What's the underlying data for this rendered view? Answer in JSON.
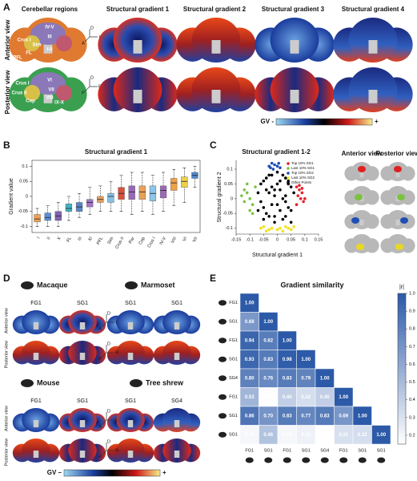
{
  "figure": {
    "panel_labels": [
      "A",
      "B",
      "C",
      "D",
      "E"
    ],
    "panel_a": {
      "titles": [
        "Cerebellar regions",
        "Structural gradient 1",
        "Structural gradient 2",
        "Structural gradient 3",
        "Structural gradient 4"
      ],
      "views": [
        "Anterior view",
        "Posterior view"
      ],
      "anterior_regions": [
        "IV-V",
        "III",
        "Sim",
        "Crus I",
        "I-II",
        "FL",
        "PFL"
      ],
      "posterior_regions": [
        "VI",
        "VII",
        "VIII",
        "Crus I",
        "Crus II",
        "Cop",
        "IX-X"
      ],
      "axes_anterior": [
        "D",
        "L",
        "A"
      ],
      "axes_posterior": [
        "D",
        "R",
        "P"
      ],
      "colorbar": [
        "GV -",
        "+"
      ]
    },
    "panel_c_views": [
      "Anterior view",
      "Posterior view"
    ],
    "panel_d": {
      "species": [
        "Macaque",
        "Marmoset",
        "Mouse",
        "Tree shrew"
      ],
      "gradients": [
        [
          "FG1",
          "SG1"
        ],
        [
          "SG1",
          "SG1"
        ],
        [
          "FG1",
          "SG1"
        ],
        [
          "SG1",
          "SG4"
        ]
      ],
      "views": [
        "Anterior view",
        "Posterior view",
        "Anterior view",
        "Posterior view"
      ],
      "axes_anterior": [
        "D",
        "L",
        "A"
      ],
      "axes_posterior": [
        "D",
        "R",
        "P"
      ],
      "colorbar": [
        "GV –",
        "+"
      ]
    }
  },
  "chart_data": [
    {
      "type": "box",
      "title": "Structural gradient 1",
      "ylabel": "Gradient value",
      "categories": [
        "I",
        "II",
        "X",
        "FL",
        "III",
        "XI",
        "PFL",
        "Sim",
        "Crus II",
        "Par",
        "Cop",
        "Crus I",
        "IV-V",
        "VIII",
        "VI",
        "VII"
      ],
      "colors": [
        "#f0a050",
        "#5a8fd6",
        "#8262b4",
        "#3fb3c4",
        "#5a86c8",
        "#a274c4",
        "#e6a25e",
        "#86c0e6",
        "#d9503c",
        "#9a68b8",
        "#eaa258",
        "#8cc6e8",
        "#9b6ab6",
        "#eea14a",
        "#ecd24a",
        "#4e8ad2"
      ],
      "stats": [
        {
          "low": -0.1,
          "q1": -0.085,
          "median": -0.075,
          "q3": -0.06,
          "high": -0.04
        },
        {
          "low": -0.1,
          "q1": -0.08,
          "median": -0.07,
          "q3": -0.055,
          "high": -0.03
        },
        {
          "low": -0.1,
          "q1": -0.08,
          "median": -0.065,
          "q3": -0.05,
          "high": -0.02
        },
        {
          "low": -0.08,
          "q1": -0.05,
          "median": -0.04,
          "q3": -0.025,
          "high": 0
        },
        {
          "low": -0.07,
          "q1": -0.05,
          "median": -0.035,
          "q3": -0.02,
          "high": 0.01
        },
        {
          "low": -0.06,
          "q1": -0.035,
          "median": -0.02,
          "q3": -0.01,
          "high": 0.03
        },
        {
          "low": -0.05,
          "q1": -0.02,
          "median": -0.01,
          "q3": 0,
          "high": 0.035
        },
        {
          "low": -0.05,
          "q1": -0.02,
          "median": 0,
          "q3": 0.01,
          "high": 0.05
        },
        {
          "low": -0.05,
          "q1": -0.01,
          "median": 0.01,
          "q3": 0.03,
          "high": 0.07
        },
        {
          "low": -0.06,
          "q1": -0.01,
          "median": 0.015,
          "q3": 0.035,
          "high": 0.08
        },
        {
          "low": -0.05,
          "q1": -0.01,
          "median": 0.015,
          "q3": 0.035,
          "high": 0.08
        },
        {
          "low": -0.06,
          "q1": -0.015,
          "median": 0.01,
          "q3": 0.035,
          "high": 0.07
        },
        {
          "low": -0.05,
          "q1": -0.005,
          "median": 0.02,
          "q3": 0.035,
          "high": 0.08
        },
        {
          "low": -0.03,
          "q1": 0.02,
          "median": 0.045,
          "q3": 0.06,
          "high": 0.09
        },
        {
          "low": -0.02,
          "q1": 0.03,
          "median": 0.05,
          "q3": 0.065,
          "high": 0.095
        },
        {
          "low": 0.03,
          "q1": 0.06,
          "median": 0.07,
          "q3": 0.08,
          "high": 0.1
        }
      ],
      "ylim": [
        -0.12,
        0.12
      ],
      "yticks": [
        -0.1,
        -0.05,
        0,
        0.05,
        0.1
      ]
    },
    {
      "type": "scatter",
      "title": "Structural gradient 1-2",
      "xlabel": "Structural gradient 1",
      "ylabel": "Structural gradient 2",
      "xlim": [
        -0.15,
        0.15
      ],
      "xticks": [
        -0.15,
        -0.1,
        -0.05,
        0,
        0.05,
        0.1,
        0.15
      ],
      "ylim": [
        -0.12,
        0.13
      ],
      "yticks": [
        -0.1,
        -0.05,
        0,
        0.05,
        0.1
      ],
      "series": [
        {
          "name": "Top 10% SG1",
          "color": "#e8202a",
          "x": [
            0.07,
            0.08,
            0.09,
            0.075,
            0.085,
            0.095,
            0.07,
            0.08,
            0.09,
            0.1
          ],
          "values": [
            0.04,
            0.03,
            0.02,
            0.01,
            0,
            -0.01,
            -0.02,
            0.045,
            0.035,
            0
          ]
        },
        {
          "name": "Last 10% SG1",
          "color": "#7cc242",
          "x": [
            -0.12,
            -0.11,
            -0.1,
            -0.09,
            -0.13,
            -0.1,
            -0.08,
            -0.11,
            -0.09,
            -0.12
          ],
          "values": [
            0.03,
            0.05,
            0,
            -0.02,
            0.01,
            -0.04,
            0.04,
            0.02,
            -0.05,
            -0.01
          ]
        },
        {
          "name": "Top 10% SG2",
          "color": "#1f4fb4",
          "x": [
            -0.03,
            -0.02,
            -0.01,
            0,
            0.01,
            -0.015,
            0.005,
            -0.025
          ],
          "values": [
            0.11,
            0.12,
            0.115,
            0.11,
            0.105,
            0.1,
            0.12,
            0.105
          ]
        },
        {
          "name": "Last 10% SG2",
          "color": "#f2e21c",
          "x": [
            -0.06,
            -0.04,
            -0.02,
            0,
            0.02,
            0.04,
            0.06,
            -0.05,
            0.01,
            0.05,
            -0.03,
            0.03
          ],
          "values": [
            -0.1,
            -0.11,
            -0.1,
            -0.105,
            -0.11,
            -0.1,
            -0.095,
            -0.095,
            -0.1,
            -0.105,
            -0.105,
            -0.095
          ]
        },
        {
          "name": "Other Points",
          "color": "#000000",
          "x": [
            -0.07,
            -0.06,
            -0.05,
            -0.04,
            -0.03,
            -0.02,
            -0.01,
            0,
            0.01,
            0.02,
            0.03,
            0.04,
            0.05,
            0.06,
            -0.06,
            -0.04,
            -0.02,
            0,
            0.02,
            0.04,
            -0.05,
            -0.03,
            -0.01,
            0.01,
            0.03,
            0.05,
            -0.07,
            -0.05,
            -0.03,
            -0.01,
            0.01,
            0.03,
            0.05,
            -0.04,
            -0.02,
            0,
            0.02,
            0.04,
            -0.01,
            0.03
          ],
          "values": [
            0.02,
            0.05,
            -0.03,
            0.07,
            -0.06,
            0.08,
            0.03,
            -0.02,
            0.06,
            -0.07,
            0.01,
            0.05,
            -0.04,
            0.02,
            -0.01,
            -0.05,
            0.04,
            0.09,
            0,
            -0.03,
            0.06,
            0.02,
            -0.06,
            -0.04,
            0.07,
            0.04,
            -0.04,
            -0.07,
            0.08,
            0.01,
            0.03,
            -0.06,
            -0.08,
            0.03,
            -0.02,
            0.05,
            0.08,
            0.06,
            -0.08,
            -0.01
          ]
        }
      ]
    },
    {
      "type": "heatmap",
      "title": "Gradient similarity",
      "row_labels": [
        "FG1",
        "SG1",
        "FG1",
        "SG1",
        "SG4",
        "FG1",
        "SG1",
        "SG1"
      ],
      "col_labels": [
        "FG1",
        "SG1",
        "FG1",
        "SG1",
        "SG4",
        "FG1",
        "SG1",
        "SG1"
      ],
      "values": [
        [
          1
        ],
        [
          0.68,
          1
        ],
        [
          0.94,
          0.82,
          1
        ],
        [
          0.93,
          0.83,
          0.98,
          1
        ],
        [
          0.8,
          0.76,
          0.83,
          0.79,
          1
        ],
        [
          0.53,
          0.16,
          0.4,
          0.32,
          0.4,
          1
        ],
        [
          0.86,
          0.7,
          0.83,
          0.77,
          0.83,
          0.69,
          1
        ],
        [
          0.19,
          0.46,
          0.19,
          0.22,
          0.15,
          0.31,
          0.32,
          1
        ]
      ],
      "value_labels": [
        [
          "1.00"
        ],
        [
          "0.68",
          "1.00"
        ],
        [
          "0.94",
          "0.82",
          "1.00"
        ],
        [
          "0.93",
          "0.83",
          "0.98",
          "1.00"
        ],
        [
          "0.80",
          "0.76",
          "0.83",
          "0.79",
          "1.00"
        ],
        [
          "0.53",
          "0.16",
          "0.40",
          "0.32",
          "0.40",
          "1.00"
        ],
        [
          "0.86",
          "0.70",
          "0.83",
          "0.77",
          "0.83",
          "0.69",
          "1.00"
        ],
        [
          "0.19",
          "0.46",
          "0.19",
          "0.22",
          "0.15",
          "0.31",
          "0.32",
          "1.00"
        ]
      ],
      "colorbar_label": "|r|",
      "clim": [
        0.15,
        1
      ],
      "cticks": [
        0.2,
        0.3,
        0.4,
        0.5,
        0.6,
        0.7,
        0.8,
        0.9,
        {
          "value": 1,
          "label": "1.0"
        }
      ],
      "color": "#2c5aa8"
    }
  ]
}
